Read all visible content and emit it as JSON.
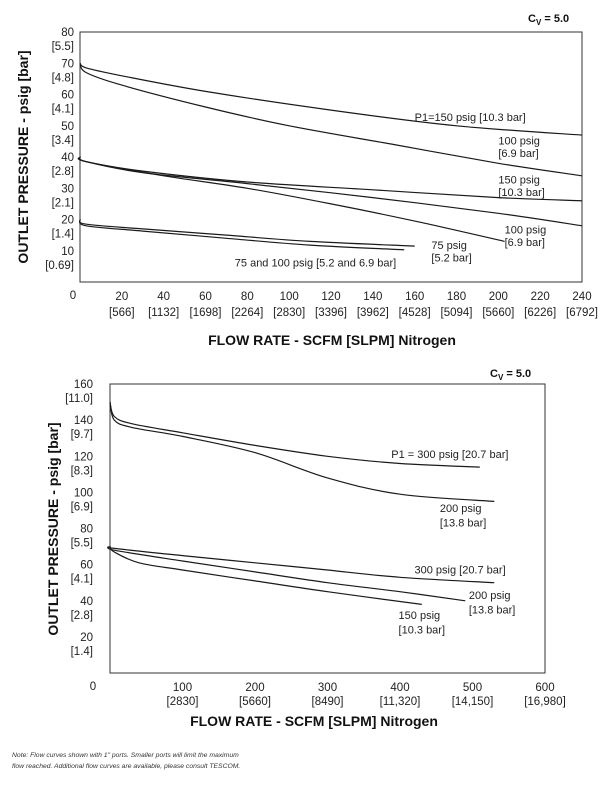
{
  "chart_data": [
    {
      "type": "line",
      "cv_label": "C",
      "cv_sub": "V",
      "cv_value": " = 5.0",
      "xlabel": "FLOW RATE - SCFM [SLPM] Nitrogen",
      "ylabel": "OUTLET PRESSURE - psig [bar]",
      "xlim": [
        0,
        240
      ],
      "ylim": [
        0,
        80
      ],
      "x_ticks": [
        {
          "v": 0,
          "psi": "0",
          "slpm": ""
        },
        {
          "v": 20,
          "psi": "20",
          "slpm": "[566]"
        },
        {
          "v": 40,
          "psi": "40",
          "slpm": "[1132]"
        },
        {
          "v": 60,
          "psi": "60",
          "slpm": "[1698]"
        },
        {
          "v": 80,
          "psi": "80",
          "slpm": "[2264]"
        },
        {
          "v": 100,
          "psi": "100",
          "slpm": "[2830]"
        },
        {
          "v": 120,
          "psi": "120",
          "slpm": "[3396]"
        },
        {
          "v": 140,
          "psi": "140",
          "slpm": "[3962]"
        },
        {
          "v": 160,
          "psi": "160",
          "slpm": "[4528]"
        },
        {
          "v": 180,
          "psi": "180",
          "slpm": "[5094]"
        },
        {
          "v": 200,
          "psi": "200",
          "slpm": "[5660]"
        },
        {
          "v": 220,
          "psi": "220",
          "slpm": "[6226]"
        },
        {
          "v": 240,
          "psi": "240",
          "slpm": "[6792]"
        }
      ],
      "y_ticks": [
        {
          "v": 80,
          "psi": "80",
          "bar": "[5.5]"
        },
        {
          "v": 70,
          "psi": "70",
          "bar": "[4.8]"
        },
        {
          "v": 60,
          "psi": "60",
          "bar": "[4.1]"
        },
        {
          "v": 50,
          "psi": "50",
          "bar": "[3.4]"
        },
        {
          "v": 40,
          "psi": "40",
          "bar": "[2.8]"
        },
        {
          "v": 30,
          "psi": "30",
          "bar": "[2.1]"
        },
        {
          "v": 20,
          "psi": "20",
          "bar": "[1.4]"
        },
        {
          "v": 10,
          "psi": "10",
          "bar": "[0.69]"
        }
      ],
      "y_zero_label": "0",
      "series": [
        {
          "name": "P1=150 psig [10.3 bar] (set 70)",
          "x": [
            0,
            3,
            20,
            60,
            120,
            180,
            240
          ],
          "y": [
            70,
            68.5,
            66,
            61,
            55,
            50,
            47
          ]
        },
        {
          "name": "100 psig [6.9 bar] (set 70)",
          "x": [
            0,
            3,
            20,
            60,
            100,
            150,
            200,
            240
          ],
          "y": [
            70,
            67,
            63,
            56,
            50,
            44,
            38,
            34
          ]
        },
        {
          "name": "150 psig [10.3 bar] (set 40)",
          "x": [
            0,
            3,
            30,
            80,
            140,
            200,
            240
          ],
          "y": [
            40,
            38.5,
            35.5,
            32,
            29.5,
            27,
            26
          ]
        },
        {
          "name": "100 psig [6.9 bar] (set 40)",
          "x": [
            0,
            3,
            30,
            80,
            140,
            200,
            240
          ],
          "y": [
            40,
            38.5,
            35,
            31.5,
            27,
            22,
            18
          ]
        },
        {
          "name": "75 psig [5.2 bar] (set 40)",
          "x": [
            0,
            3,
            40,
            80,
            120,
            160,
            203
          ],
          "y": [
            40,
            38.5,
            34,
            30,
            25,
            19.5,
            13
          ]
        },
        {
          "name": "75 and 100 psig [5.2 and 6.9 bar] (set 20, upper)",
          "x": [
            0,
            3,
            30,
            70,
            110,
            160
          ],
          "y": [
            20,
            18.5,
            17,
            15,
            13,
            11.5
          ]
        },
        {
          "name": "75 and 100 psig [5.2 and 6.9 bar] (set 20, lower)",
          "x": [
            0,
            3,
            30,
            70,
            110,
            155
          ],
          "y": [
            20,
            18,
            16.3,
            14,
            11.8,
            10.3
          ]
        }
      ],
      "annotations": [
        {
          "text": "P1=150 psig [10.3 bar]",
          "x": 160,
          "y": 51.5
        },
        {
          "text": "100 psig",
          "x": 200,
          "y": 44
        },
        {
          "text": "[6.9 bar]",
          "x": 200,
          "y": 40
        },
        {
          "text": "150 psig",
          "x": 200,
          "y": 31.5
        },
        {
          "text": "[10.3 bar]",
          "x": 200,
          "y": 27.5
        },
        {
          "text": "100 psig",
          "x": 203,
          "y": 15.5
        },
        {
          "text": "[6.9 bar]",
          "x": 203,
          "y": 11.5
        },
        {
          "text": "75 psig",
          "x": 168,
          "y": 10.5
        },
        {
          "text": "[5.2 bar]",
          "x": 168,
          "y": 6.5
        },
        {
          "text": "75 and 100 psig [5.2 and 6.9 bar]",
          "x": 74,
          "y": 5
        }
      ]
    },
    {
      "type": "line",
      "cv_label": "C",
      "cv_sub": "V",
      "cv_value": " = 5.0",
      "xlabel": "FLOW RATE - SCFM [SLPM] Nitrogen",
      "ylabel": "OUTLET PRESSURE - psig [bar]",
      "xlim": [
        0,
        600
      ],
      "ylim": [
        0,
        160
      ],
      "x_ticks": [
        {
          "v": 0,
          "psi": "0",
          "slpm": ""
        },
        {
          "v": 100,
          "psi": "100",
          "slpm": "[2830]"
        },
        {
          "v": 200,
          "psi": "200",
          "slpm": "[5660]"
        },
        {
          "v": 300,
          "psi": "300",
          "slpm": "[8490]"
        },
        {
          "v": 400,
          "psi": "400",
          "slpm": "[11,320]"
        },
        {
          "v": 500,
          "psi": "500",
          "slpm": "[14,150]"
        },
        {
          "v": 600,
          "psi": "600",
          "slpm": "[16,980]"
        }
      ],
      "y_ticks": [
        {
          "v": 160,
          "psi": "160",
          "bar": "[11.0]"
        },
        {
          "v": 140,
          "psi": "140",
          "bar": "[9.7]"
        },
        {
          "v": 120,
          "psi": "120",
          "bar": "[8.3]"
        },
        {
          "v": 100,
          "psi": "100",
          "bar": "[6.9]"
        },
        {
          "v": 80,
          "psi": "80",
          "bar": "[5.5]"
        },
        {
          "v": 60,
          "psi": "60",
          "bar": "[4.1]"
        },
        {
          "v": 40,
          "psi": "40",
          "bar": "[2.8]"
        },
        {
          "v": 20,
          "psi": "20",
          "bar": "[1.4]"
        }
      ],
      "y_zero_label": "0",
      "series": [
        {
          "name": "P1 = 300 psig [20.7 bar] (set 150)",
          "x": [
            0,
            6,
            30,
            100,
            200,
            300,
            400,
            510
          ],
          "y": [
            150,
            142,
            138,
            133,
            126,
            120,
            116,
            114
          ]
        },
        {
          "name": "200 psig [13.8 bar] (set 150)",
          "x": [
            0,
            6,
            30,
            100,
            200,
            300,
            400,
            530
          ],
          "y": [
            150,
            140,
            136,
            131,
            122,
            108,
            99,
            95
          ]
        },
        {
          "name": "300 psig [20.7 bar] (set 70)",
          "x": [
            0,
            6,
            100,
            200,
            300,
            400,
            530
          ],
          "y": [
            70,
            69,
            65,
            61,
            57,
            53,
            50
          ]
        },
        {
          "name": "200 psig [13.8 bar] (set 70)",
          "x": [
            0,
            6,
            100,
            200,
            300,
            400,
            490
          ],
          "y": [
            70,
            68,
            62,
            56,
            50,
            45,
            40
          ]
        },
        {
          "name": "150 psig [10.3 bar] (set 70)",
          "x": [
            0,
            6,
            40,
            100,
            200,
            300,
            430
          ],
          "y": [
            70,
            67,
            61,
            57,
            51,
            45,
            38
          ]
        }
      ],
      "annotations": [
        {
          "text": "P1 = 300 psig [20.7 bar]",
          "x": 388,
          "y": 119
        },
        {
          "text": "200 psig",
          "x": 455,
          "y": 89
        },
        {
          "text": "[13.8 bar]",
          "x": 455,
          "y": 81
        },
        {
          "text": "300 psig [20.7 bar]",
          "x": 420,
          "y": 55
        },
        {
          "text": "200 psig",
          "x": 495,
          "y": 41
        },
        {
          "text": "[13.8 bar]",
          "x": 495,
          "y": 33
        },
        {
          "text": "150 psig",
          "x": 398,
          "y": 30
        },
        {
          "text": "[10.3 bar]",
          "x": 398,
          "y": 22
        }
      ]
    }
  ],
  "footnote_line1": "Note: Flow curves shown with 1\" ports. Smaller ports will limit the maximum",
  "footnote_line2": "flow reached. Additional flow curves are available, please consult TESCOM."
}
